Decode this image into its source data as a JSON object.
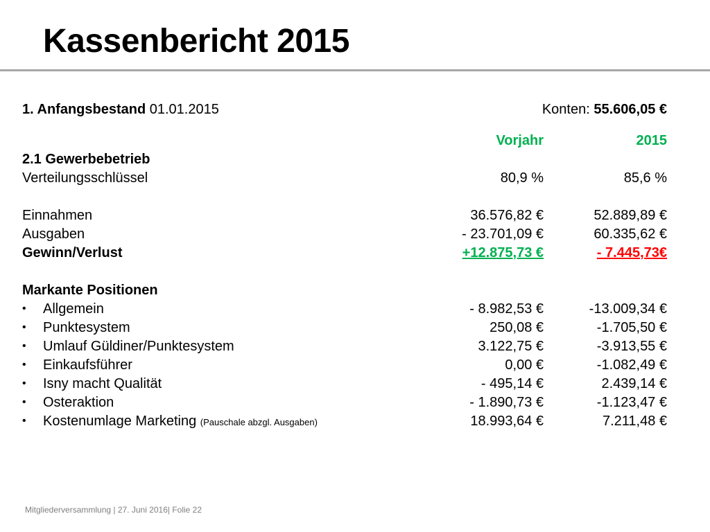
{
  "title": "Kassenbericht 2015",
  "opening": {
    "label_bold": "1. Anfangsbestand",
    "label_rest": " 01.01.2015",
    "konten_label": "Konten: ",
    "konten_value": "55.606,05 €"
  },
  "columns": {
    "prev": "Vorjahr",
    "curr": "2015"
  },
  "section": "2.1 Gewerbebetrieb",
  "verteilung": {
    "label": "Verteilungsschlüssel",
    "prev": "80,9 %",
    "curr": "85,6 %"
  },
  "einnahmen": {
    "label": "Einnahmen",
    "prev": "36.576,82 €",
    "curr": "52.889,89 €"
  },
  "ausgaben": {
    "label": "Ausgaben",
    "prev": "- 23.701,09 €",
    "curr": "60.335,62 €"
  },
  "gewinn": {
    "label": "Gewinn/Verlust",
    "prev": "+12.875,73 €",
    "curr": "- 7.445,73€"
  },
  "markante_heading": "Markante Positionen",
  "bullet_char": "•",
  "positions": [
    {
      "label": "Allgemein",
      "note": "",
      "prev": "- 8.982,53 €",
      "curr": "-13.009,34 €"
    },
    {
      "label": "Punktesystem",
      "note": "",
      "prev": "250,08 €",
      "curr": "-1.705,50 €"
    },
    {
      "label": "Umlauf Güldiner/Punktesystem",
      "note": "",
      "prev": "3.122,75 €",
      "curr": "-3.913,55 €"
    },
    {
      "label": "Einkaufsführer",
      "note": "",
      "prev": "0,00 €",
      "curr": "-1.082,49 €"
    },
    {
      "label": "Isny macht Qualität",
      "note": "",
      "prev": "- 495,14 €",
      "curr": "2.439,14 €"
    },
    {
      "label": "Osteraktion",
      "note": "",
      "prev": "- 1.890,73 €",
      "curr": "-1.123,47 €"
    },
    {
      "label": "Kostenumlage Marketing",
      "note": "(Pauschale abzgl. Ausgaben)",
      "prev": "18.993,64 €",
      "curr": "7.211,48 €"
    }
  ],
  "footer": "Mitgliederversammlung | 27. Juni 2016| Folie  22",
  "colors": {
    "accent": "#00b050",
    "negative": "#ff0000",
    "rule": "#a6a6a6",
    "footer": "#7f7f7f"
  }
}
